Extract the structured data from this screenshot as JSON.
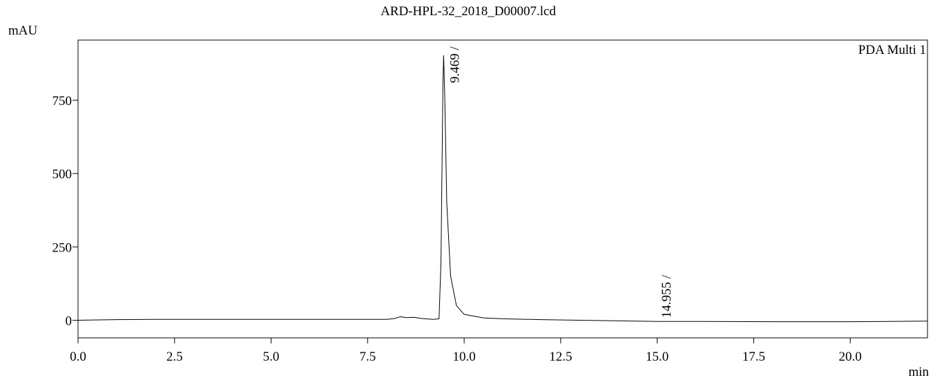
{
  "chart_data": {
    "type": "line",
    "title": "ARD-HPL-32_2018_D00007.lcd",
    "y_label": "mAU",
    "x_label": "min",
    "legend_text": "PDA Multi 1",
    "xlim": [
      0,
      22
    ],
    "ylim": [
      -60,
      955
    ],
    "xticks": [
      {
        "value": 0,
        "label": "0.0"
      },
      {
        "value": 2.5,
        "label": "2.5"
      },
      {
        "value": 5,
        "label": "5.0"
      },
      {
        "value": 7.5,
        "label": "7.5"
      },
      {
        "value": 10,
        "label": "10.0"
      },
      {
        "value": 12.5,
        "label": "12.5"
      },
      {
        "value": 15,
        "label": "15.0"
      },
      {
        "value": 17.5,
        "label": "17.5"
      },
      {
        "value": 20,
        "label": "20.0"
      }
    ],
    "yticks": [
      0,
      250,
      500,
      750
    ],
    "series": [
      {
        "name": "PDA Multi 1",
        "color": "#000000",
        "x": [
          0,
          1,
          2,
          2.5,
          3,
          5,
          7,
          8.0,
          8.2,
          8.35,
          8.5,
          8.7,
          8.9,
          9.2,
          9.35,
          9.4,
          9.45,
          9.469,
          9.5,
          9.55,
          9.65,
          9.8,
          10.0,
          10.5,
          11,
          12,
          13,
          14,
          15,
          16,
          18,
          20,
          21,
          22
        ],
        "values": [
          0,
          2,
          3,
          3,
          3,
          3,
          3,
          3,
          6,
          12,
          9,
          10,
          6,
          3,
          5,
          200,
          800,
          903,
          750,
          400,
          150,
          50,
          20,
          8,
          5,
          2,
          0,
          -2,
          -4,
          -4,
          -5,
          -5,
          -4,
          -3
        ]
      }
    ],
    "annotations": [
      {
        "text": "9.469 /",
        "x": 9.469,
        "y": 903
      },
      {
        "text": "14.955 /",
        "x": 14.955,
        "y": -4
      }
    ]
  }
}
